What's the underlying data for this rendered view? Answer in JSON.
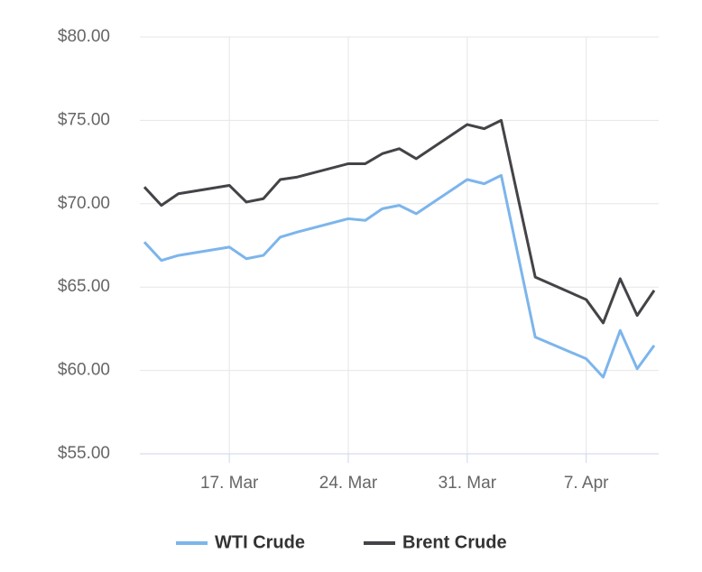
{
  "chart_data": {
    "type": "line",
    "x": [
      "12. Mar",
      "13. Mar",
      "14. Mar",
      "17. Mar",
      "18. Mar",
      "19. Mar",
      "20. Mar",
      "21. Mar",
      "24. Mar",
      "25. Mar",
      "26. Mar",
      "27. Mar",
      "28. Mar",
      "31. Mar",
      "1. Apr",
      "2. Apr",
      "4. Apr",
      "7. Apr",
      "8. Apr",
      "9. Apr",
      "10. Apr",
      "11. Apr"
    ],
    "series": [
      {
        "name": "WTI Crude",
        "color": "#7cb5ec",
        "values": [
          67.7,
          66.6,
          66.9,
          67.4,
          66.7,
          66.9,
          68.0,
          68.3,
          69.1,
          69.0,
          69.7,
          69.9,
          69.4,
          71.45,
          71.2,
          71.7,
          62.0,
          60.7,
          59.6,
          62.4,
          60.1,
          61.5
        ]
      },
      {
        "name": "Brent Crude",
        "color": "#434348",
        "values": [
          71.0,
          69.9,
          70.6,
          71.1,
          70.1,
          70.3,
          71.45,
          71.6,
          72.4,
          72.4,
          73.0,
          73.3,
          72.7,
          74.75,
          74.5,
          75.0,
          65.6,
          64.25,
          62.85,
          65.5,
          63.3,
          64.8
        ]
      }
    ],
    "xticks": [
      "17. Mar",
      "24. Mar",
      "31. Mar",
      "7. Apr"
    ],
    "ylim": [
      55,
      80
    ],
    "yticks": [
      {
        "value": 55,
        "label": "$55.00"
      },
      {
        "value": 60,
        "label": "$60.00"
      },
      {
        "value": 65,
        "label": "$65.00"
      },
      {
        "value": 70,
        "label": "$70.00"
      },
      {
        "value": 75,
        "label": "$75.00"
      },
      {
        "value": 80,
        "label": "$80.00"
      }
    ],
    "grid": true,
    "legend": "bottom"
  }
}
